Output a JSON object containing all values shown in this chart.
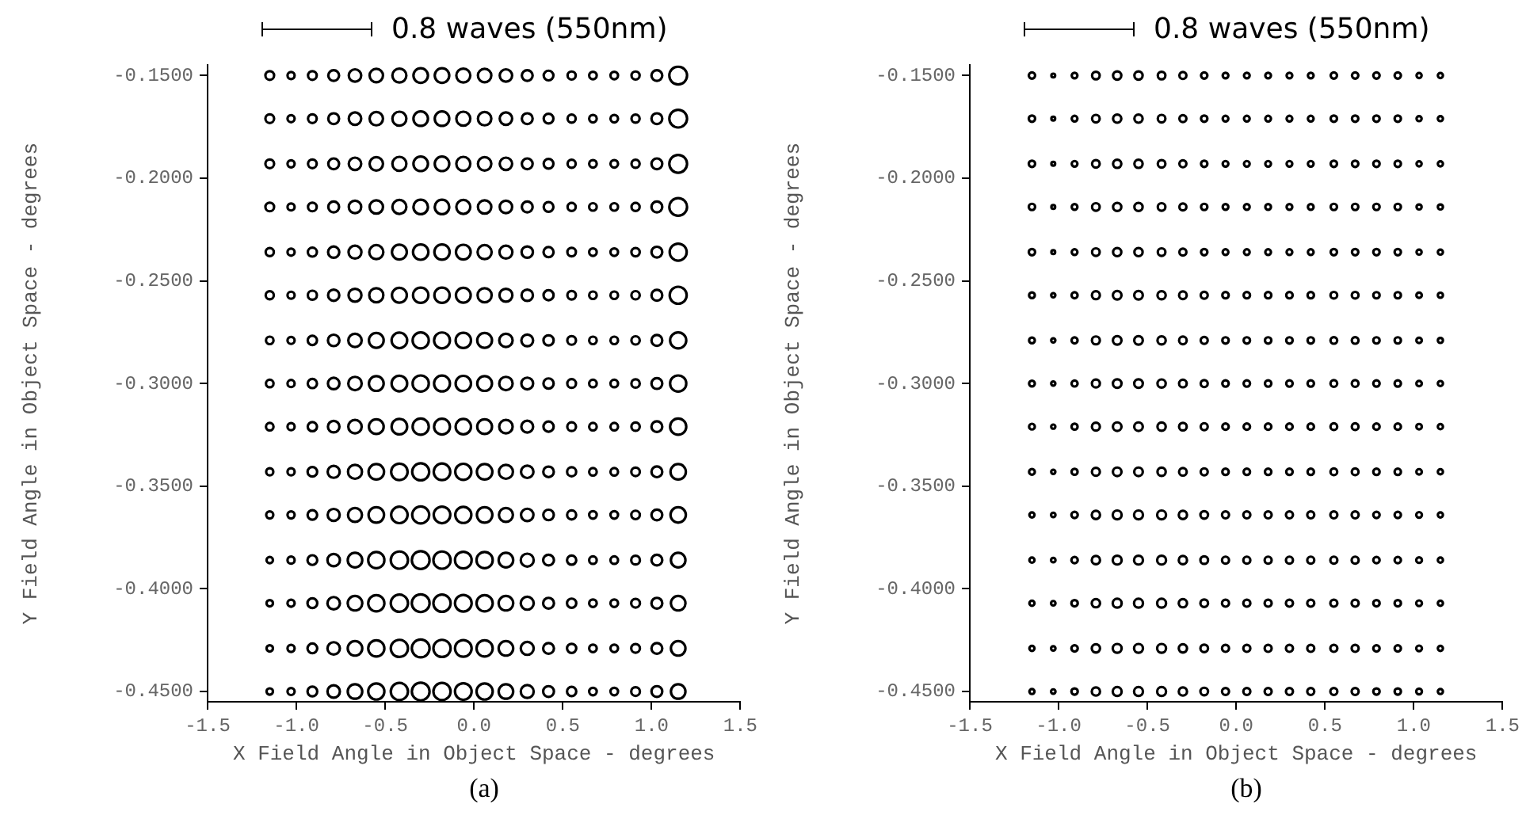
{
  "chart_data": [
    {
      "type": "bubble",
      "marker": "circle",
      "xlabel": "X Field Angle in Object Space - degrees",
      "ylabel": "Y Field Angle in Object Space - degrees",
      "annotations": [
        "0.8 waves (550nm)",
        "(a)"
      ],
      "xlim": [
        -1.5,
        1.5
      ],
      "xticks": [
        -1.5,
        {
          "value": -1,
          "label": "-1.0"
        },
        -0.5,
        {
          "value": 0,
          "label": "0.0"
        },
        0.5,
        {
          "value": 1,
          "label": "1.0"
        },
        1.5
      ],
      "ylim": [
        -0.455,
        -0.145
      ],
      "yticks": [
        {
          "value": -0.15,
          "label": "-0.1500"
        },
        {
          "value": -0.2,
          "label": "-0.2000"
        },
        {
          "value": -0.25,
          "label": "-0.2500"
        },
        {
          "value": -0.3,
          "label": "-0.3000"
        },
        {
          "value": -0.35,
          "label": "-0.3500"
        },
        {
          "value": -0.4,
          "label": "-0.4000"
        },
        {
          "value": -0.45,
          "label": "-0.4500"
        }
      ],
      "x": [
        -1.15,
        -1.03,
        -0.91,
        -0.79,
        -0.67,
        -0.55,
        -0.42,
        -0.3,
        -0.18,
        -0.06,
        0.06,
        0.18,
        0.3,
        0.42,
        0.55,
        0.67,
        0.79,
        0.91,
        1.03,
        1.15
      ],
      "series": [
        {
          "color": "#000000",
          "values": [
            -0.15,
            -0.15,
            -0.15,
            -0.15,
            -0.15,
            -0.15,
            -0.15,
            -0.15,
            -0.15,
            -0.15,
            -0.15,
            -0.15,
            -0.15,
            -0.15,
            -0.15,
            -0.15,
            -0.15,
            -0.15,
            -0.15,
            -0.15
          ],
          "sizes": [
            0.24,
            0.16,
            0.24,
            0.37,
            0.49,
            0.57,
            0.62,
            0.67,
            0.67,
            0.62,
            0.57,
            0.49,
            0.37,
            0.3,
            0.21,
            0.18,
            0.18,
            0.21,
            0.37,
            1
          ]
        },
        {
          "color": "#000000",
          "values": [
            -0.171,
            -0.171,
            -0.171,
            -0.171,
            -0.171,
            -0.171,
            -0.171,
            -0.171,
            -0.171,
            -0.171,
            -0.171,
            -0.171,
            -0.171,
            -0.171,
            -0.171,
            -0.171,
            -0.171,
            -0.171,
            -0.171,
            -0.171
          ],
          "sizes": [
            0.24,
            0.16,
            0.24,
            0.37,
            0.49,
            0.57,
            0.62,
            0.67,
            0.67,
            0.62,
            0.57,
            0.49,
            0.37,
            0.3,
            0.21,
            0.18,
            0.18,
            0.21,
            0.37,
            1
          ]
        },
        {
          "color": "#000000",
          "values": [
            -0.193,
            -0.193,
            -0.193,
            -0.193,
            -0.193,
            -0.193,
            -0.193,
            -0.193,
            -0.193,
            -0.193,
            -0.193,
            -0.193,
            -0.193,
            -0.193,
            -0.193,
            -0.193,
            -0.193,
            -0.193,
            -0.193,
            -0.193
          ],
          "sizes": [
            0.24,
            0.16,
            0.24,
            0.37,
            0.49,
            0.57,
            0.62,
            0.67,
            0.67,
            0.62,
            0.57,
            0.49,
            0.37,
            0.3,
            0.21,
            0.18,
            0.18,
            0.21,
            0.37,
            1
          ]
        },
        {
          "color": "#000000",
          "values": [
            -0.214,
            -0.214,
            -0.214,
            -0.214,
            -0.214,
            -0.214,
            -0.214,
            -0.214,
            -0.214,
            -0.214,
            -0.214,
            -0.214,
            -0.214,
            -0.214,
            -0.214,
            -0.214,
            -0.214,
            -0.214,
            -0.214,
            -0.214
          ],
          "sizes": [
            0.24,
            0.16,
            0.24,
            0.37,
            0.49,
            0.57,
            0.62,
            0.67,
            0.67,
            0.62,
            0.57,
            0.49,
            0.37,
            0.3,
            0.21,
            0.18,
            0.18,
            0.21,
            0.37,
            1
          ]
        },
        {
          "color": "#000000",
          "values": [
            -0.236,
            -0.236,
            -0.236,
            -0.236,
            -0.236,
            -0.236,
            -0.236,
            -0.236,
            -0.236,
            -0.236,
            -0.236,
            -0.236,
            -0.236,
            -0.236,
            -0.236,
            -0.236,
            -0.236,
            -0.236,
            -0.236,
            -0.236
          ],
          "sizes": [
            0.21,
            0.16,
            0.26,
            0.4,
            0.53,
            0.63,
            0.7,
            0.75,
            0.74,
            0.69,
            0.63,
            0.53,
            0.41,
            0.32,
            0.23,
            0.18,
            0.18,
            0.22,
            0.37,
            0.92
          ]
        },
        {
          "color": "#000000",
          "values": [
            -0.257,
            -0.257,
            -0.257,
            -0.257,
            -0.257,
            -0.257,
            -0.257,
            -0.257,
            -0.257,
            -0.257,
            -0.257,
            -0.257,
            -0.257,
            -0.257,
            -0.257,
            -0.257,
            -0.257,
            -0.257,
            -0.257,
            -0.257
          ],
          "sizes": [
            0.21,
            0.16,
            0.26,
            0.4,
            0.53,
            0.63,
            0.7,
            0.75,
            0.74,
            0.69,
            0.63,
            0.53,
            0.41,
            0.32,
            0.23,
            0.18,
            0.18,
            0.22,
            0.37,
            0.92
          ]
        },
        {
          "color": "#000000",
          "values": [
            -0.279,
            -0.279,
            -0.279,
            -0.279,
            -0.279,
            -0.279,
            -0.279,
            -0.279,
            -0.279,
            -0.279,
            -0.279,
            -0.279,
            -0.279,
            -0.279,
            -0.279,
            -0.279,
            -0.279,
            -0.279,
            -0.279,
            -0.279
          ],
          "sizes": [
            0.18,
            0.16,
            0.27,
            0.42,
            0.57,
            0.69,
            0.77,
            0.83,
            0.8,
            0.75,
            0.69,
            0.57,
            0.44,
            0.33,
            0.24,
            0.18,
            0.18,
            0.22,
            0.37,
            0.83
          ]
        },
        {
          "color": "#000000",
          "values": [
            -0.3,
            -0.3,
            -0.3,
            -0.3,
            -0.3,
            -0.3,
            -0.3,
            -0.3,
            -0.3,
            -0.3,
            -0.3,
            -0.3,
            -0.3,
            -0.3,
            -0.3,
            -0.3,
            -0.3,
            -0.3,
            -0.3,
            -0.3
          ],
          "sizes": [
            0.18,
            0.16,
            0.27,
            0.42,
            0.57,
            0.69,
            0.77,
            0.83,
            0.8,
            0.75,
            0.69,
            0.57,
            0.44,
            0.33,
            0.24,
            0.18,
            0.18,
            0.22,
            0.37,
            0.83
          ]
        },
        {
          "color": "#000000",
          "values": [
            -0.321,
            -0.321,
            -0.321,
            -0.321,
            -0.321,
            -0.321,
            -0.321,
            -0.321,
            -0.321,
            -0.321,
            -0.321,
            -0.321,
            -0.321,
            -0.321,
            -0.321,
            -0.321,
            -0.321,
            -0.321,
            -0.321,
            -0.321
          ],
          "sizes": [
            0.18,
            0.16,
            0.27,
            0.42,
            0.57,
            0.69,
            0.77,
            0.83,
            0.8,
            0.75,
            0.69,
            0.57,
            0.44,
            0.33,
            0.24,
            0.18,
            0.18,
            0.22,
            0.37,
            0.83
          ]
        },
        {
          "color": "#000000",
          "values": [
            -0.343,
            -0.343,
            -0.343,
            -0.343,
            -0.343,
            -0.343,
            -0.343,
            -0.343,
            -0.343,
            -0.343,
            -0.343,
            -0.343,
            -0.343,
            -0.343,
            -0.343,
            -0.343,
            -0.343,
            -0.343,
            -0.343,
            -0.343
          ],
          "sizes": [
            0.16,
            0.16,
            0.29,
            0.46,
            0.62,
            0.76,
            0.86,
            0.92,
            0.87,
            0.82,
            0.76,
            0.62,
            0.49,
            0.35,
            0.26,
            0.18,
            0.18,
            0.23,
            0.37,
            0.75
          ]
        },
        {
          "color": "#000000",
          "values": [
            -0.364,
            -0.364,
            -0.364,
            -0.364,
            -0.364,
            -0.364,
            -0.364,
            -0.364,
            -0.364,
            -0.364,
            -0.364,
            -0.364,
            -0.364,
            -0.364,
            -0.364,
            -0.364,
            -0.364,
            -0.364,
            -0.364,
            -0.364
          ],
          "sizes": [
            0.16,
            0.16,
            0.29,
            0.46,
            0.62,
            0.76,
            0.86,
            0.92,
            0.87,
            0.82,
            0.76,
            0.62,
            0.49,
            0.35,
            0.26,
            0.18,
            0.18,
            0.23,
            0.37,
            0.75
          ]
        },
        {
          "color": "#000000",
          "values": [
            -0.386,
            -0.386,
            -0.386,
            -0.386,
            -0.386,
            -0.386,
            -0.386,
            -0.386,
            -0.386,
            -0.386,
            -0.386,
            -0.386,
            -0.386,
            -0.386,
            -0.386,
            -0.386,
            -0.386,
            -0.386,
            -0.386,
            -0.386
          ],
          "sizes": [
            0.13,
            0.16,
            0.3,
            0.49,
            0.67,
            0.83,
            0.94,
            1,
            0.94,
            0.88,
            0.83,
            0.67,
            0.53,
            0.37,
            0.27,
            0.18,
            0.18,
            0.24,
            0.37,
            0.67
          ]
        },
        {
          "color": "#000000",
          "values": [
            -0.407,
            -0.407,
            -0.407,
            -0.407,
            -0.407,
            -0.407,
            -0.407,
            -0.407,
            -0.407,
            -0.407,
            -0.407,
            -0.407,
            -0.407,
            -0.407,
            -0.407,
            -0.407,
            -0.407,
            -0.407,
            -0.407,
            -0.407
          ],
          "sizes": [
            0.13,
            0.16,
            0.3,
            0.49,
            0.67,
            0.83,
            0.94,
            1,
            0.94,
            0.88,
            0.83,
            0.67,
            0.53,
            0.37,
            0.27,
            0.18,
            0.18,
            0.24,
            0.37,
            0.67
          ]
        },
        {
          "color": "#000000",
          "values": [
            -0.429,
            -0.429,
            -0.429,
            -0.429,
            -0.429,
            -0.429,
            -0.429,
            -0.429,
            -0.429,
            -0.429,
            -0.429,
            -0.429,
            -0.429,
            -0.429,
            -0.429,
            -0.429,
            -0.429,
            -0.429,
            -0.429,
            -0.429
          ],
          "sizes": [
            0.13,
            0.16,
            0.3,
            0.49,
            0.67,
            0.83,
            0.94,
            1,
            0.94,
            0.88,
            0.83,
            0.67,
            0.53,
            0.37,
            0.27,
            0.18,
            0.18,
            0.24,
            0.37,
            0.67
          ]
        },
        {
          "color": "#000000",
          "values": [
            -0.45,
            -0.45,
            -0.45,
            -0.45,
            -0.45,
            -0.45,
            -0.45,
            -0.45,
            -0.45,
            -0.45,
            -0.45,
            -0.45,
            -0.45,
            -0.45,
            -0.45,
            -0.45,
            -0.45,
            -0.45,
            -0.45,
            -0.45
          ],
          "sizes": [
            0.13,
            0.16,
            0.3,
            0.49,
            0.67,
            0.83,
            0.94,
            1,
            0.94,
            0.88,
            0.83,
            0.67,
            0.53,
            0.37,
            0.27,
            0.18,
            0.18,
            0.24,
            0.37,
            0.67
          ]
        }
      ]
    },
    {
      "type": "bubble",
      "marker": "circle",
      "xlabel": "X Field Angle in Object Space - degrees",
      "ylabel": "Y Field Angle in Object Space - degrees",
      "annotations": [
        "0.8 waves (550nm)",
        "(b)"
      ],
      "xlim": [
        -1.5,
        1.5
      ],
      "xticks": [
        -1.5,
        {
          "value": -1,
          "label": "-1.0"
        },
        -0.5,
        {
          "value": 0,
          "label": "0.0"
        },
        0.5,
        {
          "value": 1,
          "label": "1.0"
        },
        1.5
      ],
      "ylim": [
        -0.455,
        -0.145
      ],
      "yticks": [
        {
          "value": -0.15,
          "label": "-0.1500"
        },
        {
          "value": -0.2,
          "label": "-0.2000"
        },
        {
          "value": -0.25,
          "label": "-0.2500"
        },
        {
          "value": -0.3,
          "label": "-0.3000"
        },
        {
          "value": -0.35,
          "label": "-0.3500"
        },
        {
          "value": -0.4,
          "label": "-0.4000"
        },
        {
          "value": -0.45,
          "label": "-0.4500"
        }
      ],
      "x": [
        -1.15,
        -1.03,
        -0.91,
        -0.79,
        -0.67,
        -0.55,
        -0.42,
        -0.3,
        -0.18,
        -0.06,
        0.06,
        0.18,
        0.3,
        0.42,
        0.55,
        0.67,
        0.79,
        0.91,
        1.03,
        1.15
      ],
      "series": [
        {
          "color": "#000000",
          "values": [
            -0.15,
            -0.15,
            -0.15,
            -0.15,
            -0.15,
            -0.15,
            -0.15,
            -0.15,
            -0.15,
            -0.15,
            -0.15,
            -0.15,
            -0.15,
            -0.15,
            -0.15,
            -0.15,
            -0.15,
            -0.15,
            -0.15,
            -0.15
          ],
          "sizes": [
            0.51,
            0.18,
            0.41,
            0.73,
            0.86,
            0.86,
            0.73,
            0.62,
            0.51,
            0.41,
            0.41,
            0.41,
            0.41,
            0.41,
            0.51,
            0.51,
            0.51,
            0.51,
            0.33,
            0.33
          ]
        },
        {
          "color": "#000000",
          "values": [
            -0.171,
            -0.171,
            -0.171,
            -0.171,
            -0.171,
            -0.171,
            -0.171,
            -0.171,
            -0.171,
            -0.171,
            -0.171,
            -0.171,
            -0.171,
            -0.171,
            -0.171,
            -0.171,
            -0.171,
            -0.171,
            -0.171,
            -0.171
          ],
          "sizes": [
            0.51,
            0.18,
            0.41,
            0.73,
            0.86,
            0.86,
            0.73,
            0.62,
            0.51,
            0.41,
            0.41,
            0.41,
            0.41,
            0.41,
            0.51,
            0.51,
            0.51,
            0.51,
            0.33,
            0.33
          ]
        },
        {
          "color": "#000000",
          "values": [
            -0.193,
            -0.193,
            -0.193,
            -0.193,
            -0.193,
            -0.193,
            -0.193,
            -0.193,
            -0.193,
            -0.193,
            -0.193,
            -0.193,
            -0.193,
            -0.193,
            -0.193,
            -0.193,
            -0.193,
            -0.193,
            -0.193,
            -0.193
          ],
          "sizes": [
            0.51,
            0.18,
            0.41,
            0.73,
            0.86,
            0.86,
            0.73,
            0.62,
            0.51,
            0.41,
            0.41,
            0.41,
            0.41,
            0.41,
            0.51,
            0.51,
            0.51,
            0.51,
            0.33,
            0.33
          ]
        },
        {
          "color": "#000000",
          "values": [
            -0.214,
            -0.214,
            -0.214,
            -0.214,
            -0.214,
            -0.214,
            -0.214,
            -0.214,
            -0.214,
            -0.214,
            -0.214,
            -0.214,
            -0.214,
            -0.214,
            -0.214,
            -0.214,
            -0.214,
            -0.214,
            -0.214,
            -0.214
          ],
          "sizes": [
            0.51,
            0.18,
            0.41,
            0.73,
            0.86,
            0.86,
            0.73,
            0.62,
            0.51,
            0.41,
            0.41,
            0.41,
            0.41,
            0.41,
            0.51,
            0.51,
            0.51,
            0.51,
            0.33,
            0.33
          ]
        },
        {
          "color": "#000000",
          "values": [
            -0.236,
            -0.236,
            -0.236,
            -0.236,
            -0.236,
            -0.236,
            -0.236,
            -0.236,
            -0.236,
            -0.236,
            -0.236,
            -0.236,
            -0.236,
            -0.236,
            -0.236,
            -0.236,
            -0.236,
            -0.236,
            -0.236,
            -0.236
          ],
          "sizes": [
            0.51,
            0.18,
            0.41,
            0.73,
            0.86,
            0.86,
            0.73,
            0.62,
            0.51,
            0.41,
            0.41,
            0.41,
            0.41,
            0.41,
            0.51,
            0.51,
            0.51,
            0.51,
            0.33,
            0.33
          ]
        },
        {
          "color": "#000000",
          "values": [
            -0.257,
            -0.257,
            -0.257,
            -0.257,
            -0.257,
            -0.257,
            -0.257,
            -0.257,
            -0.257,
            -0.257,
            -0.257,
            -0.257,
            -0.257,
            -0.257,
            -0.257,
            -0.257,
            -0.257,
            -0.257,
            -0.257,
            -0.257
          ],
          "sizes": [
            0.42,
            0.22,
            0.46,
            0.8,
            0.93,
            0.93,
            0.86,
            0.74,
            0.62,
            0.52,
            0.52,
            0.52,
            0.52,
            0.52,
            0.57,
            0.57,
            0.51,
            0.51,
            0.37,
            0.33
          ]
        },
        {
          "color": "#000000",
          "values": [
            -0.279,
            -0.279,
            -0.279,
            -0.279,
            -0.279,
            -0.279,
            -0.279,
            -0.279,
            -0.279,
            -0.279,
            -0.279,
            -0.279,
            -0.279,
            -0.279,
            -0.279,
            -0.279,
            -0.279,
            -0.279,
            -0.279,
            -0.279
          ],
          "sizes": [
            0.42,
            0.22,
            0.46,
            0.8,
            0.93,
            0.93,
            0.86,
            0.74,
            0.62,
            0.52,
            0.52,
            0.52,
            0.52,
            0.52,
            0.57,
            0.57,
            0.51,
            0.51,
            0.37,
            0.33
          ]
        },
        {
          "color": "#000000",
          "values": [
            -0.3,
            -0.3,
            -0.3,
            -0.3,
            -0.3,
            -0.3,
            -0.3,
            -0.3,
            -0.3,
            -0.3,
            -0.3,
            -0.3,
            -0.3,
            -0.3,
            -0.3,
            -0.3,
            -0.3,
            -0.3,
            -0.3,
            -0.3
          ],
          "sizes": [
            0.42,
            0.22,
            0.46,
            0.8,
            0.93,
            0.93,
            0.86,
            0.74,
            0.62,
            0.52,
            0.52,
            0.52,
            0.52,
            0.52,
            0.57,
            0.57,
            0.51,
            0.51,
            0.37,
            0.33
          ]
        },
        {
          "color": "#000000",
          "values": [
            -0.321,
            -0.321,
            -0.321,
            -0.321,
            -0.321,
            -0.321,
            -0.321,
            -0.321,
            -0.321,
            -0.321,
            -0.321,
            -0.321,
            -0.321,
            -0.321,
            -0.321,
            -0.321,
            -0.321,
            -0.321,
            -0.321,
            -0.321
          ],
          "sizes": [
            0.42,
            0.22,
            0.46,
            0.8,
            0.93,
            0.93,
            0.86,
            0.74,
            0.62,
            0.52,
            0.52,
            0.52,
            0.52,
            0.52,
            0.57,
            0.57,
            0.51,
            0.51,
            0.37,
            0.33
          ]
        },
        {
          "color": "#000000",
          "values": [
            -0.343,
            -0.343,
            -0.343,
            -0.343,
            -0.343,
            -0.343,
            -0.343,
            -0.343,
            -0.343,
            -0.343,
            -0.343,
            -0.343,
            -0.343,
            -0.343,
            -0.343,
            -0.343,
            -0.343,
            -0.343,
            -0.343,
            -0.343
          ],
          "sizes": [
            0.42,
            0.22,
            0.46,
            0.8,
            0.93,
            0.93,
            0.86,
            0.74,
            0.62,
            0.52,
            0.52,
            0.52,
            0.52,
            0.52,
            0.57,
            0.57,
            0.51,
            0.51,
            0.37,
            0.33
          ]
        },
        {
          "color": "#000000",
          "values": [
            -0.364,
            -0.364,
            -0.364,
            -0.364,
            -0.364,
            -0.364,
            -0.364,
            -0.364,
            -0.364,
            -0.364,
            -0.364,
            -0.364,
            -0.364,
            -0.364,
            -0.364,
            -0.364,
            -0.364,
            -0.364,
            -0.364,
            -0.364
          ],
          "sizes": [
            0.33,
            0.25,
            0.51,
            0.86,
            1,
            1,
            1,
            0.86,
            0.73,
            0.62,
            0.62,
            0.62,
            0.62,
            0.62,
            0.62,
            0.62,
            0.51,
            0.51,
            0.41,
            0.33
          ]
        },
        {
          "color": "#000000",
          "values": [
            -0.386,
            -0.386,
            -0.386,
            -0.386,
            -0.386,
            -0.386,
            -0.386,
            -0.386,
            -0.386,
            -0.386,
            -0.386,
            -0.386,
            -0.386,
            -0.386,
            -0.386,
            -0.386,
            -0.386,
            -0.386,
            -0.386,
            -0.386
          ],
          "sizes": [
            0.33,
            0.25,
            0.51,
            0.86,
            1,
            1,
            1,
            0.86,
            0.73,
            0.62,
            0.62,
            0.62,
            0.62,
            0.62,
            0.62,
            0.62,
            0.51,
            0.51,
            0.41,
            0.33
          ]
        },
        {
          "color": "#000000",
          "values": [
            -0.407,
            -0.407,
            -0.407,
            -0.407,
            -0.407,
            -0.407,
            -0.407,
            -0.407,
            -0.407,
            -0.407,
            -0.407,
            -0.407,
            -0.407,
            -0.407,
            -0.407,
            -0.407,
            -0.407,
            -0.407,
            -0.407,
            -0.407
          ],
          "sizes": [
            0.33,
            0.25,
            0.51,
            0.86,
            1,
            1,
            1,
            0.86,
            0.73,
            0.62,
            0.62,
            0.62,
            0.62,
            0.62,
            0.62,
            0.62,
            0.51,
            0.51,
            0.41,
            0.33
          ]
        },
        {
          "color": "#000000",
          "values": [
            -0.429,
            -0.429,
            -0.429,
            -0.429,
            -0.429,
            -0.429,
            -0.429,
            -0.429,
            -0.429,
            -0.429,
            -0.429,
            -0.429,
            -0.429,
            -0.429,
            -0.429,
            -0.429,
            -0.429,
            -0.429,
            -0.429,
            -0.429
          ],
          "sizes": [
            0.33,
            0.25,
            0.51,
            0.86,
            1,
            1,
            1,
            0.86,
            0.73,
            0.62,
            0.62,
            0.62,
            0.62,
            0.62,
            0.62,
            0.62,
            0.51,
            0.51,
            0.41,
            0.33
          ]
        },
        {
          "color": "#000000",
          "values": [
            -0.45,
            -0.45,
            -0.45,
            -0.45,
            -0.45,
            -0.45,
            -0.45,
            -0.45,
            -0.45,
            -0.45,
            -0.45,
            -0.45,
            -0.45,
            -0.45,
            -0.45,
            -0.45,
            -0.45,
            -0.45,
            -0.45,
            -0.45
          ],
          "sizes": [
            0.33,
            0.25,
            0.51,
            0.86,
            1,
            1,
            1,
            0.86,
            0.73,
            0.62,
            0.62,
            0.62,
            0.62,
            0.62,
            0.62,
            0.62,
            0.51,
            0.51,
            0.41,
            0.33
          ]
        }
      ]
    }
  ]
}
